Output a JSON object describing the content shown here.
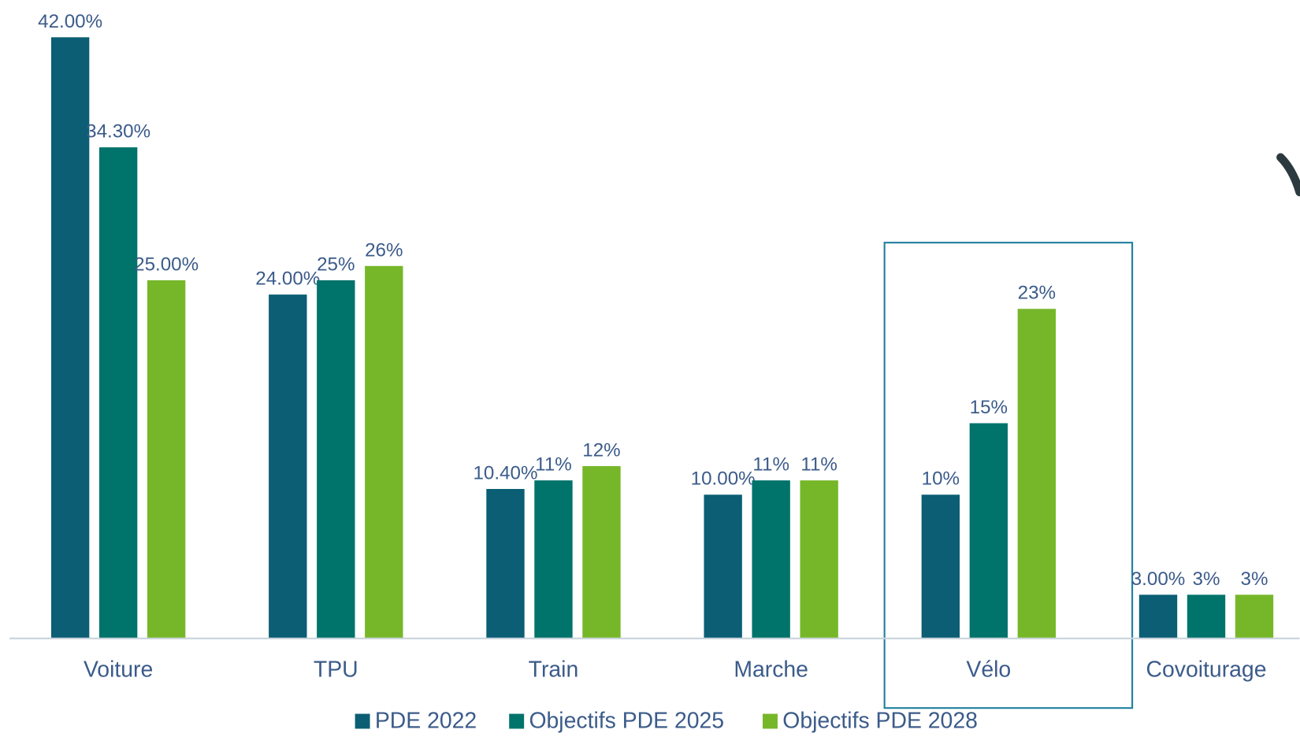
{
  "chart_data": {
    "type": "bar",
    "categories": [
      "Voiture",
      "TPU",
      "Train",
      "Marche",
      "Vélo",
      "Covoiturage"
    ],
    "series": [
      {
        "name": "PDE 2022",
        "color": "#0b5e73",
        "values": [
          42,
          24,
          10.4,
          10,
          10,
          3
        ],
        "value_labels": [
          "42.00%",
          "24.00%",
          "10.40%",
          "10.00%",
          "10%",
          "3.00%"
        ]
      },
      {
        "name": "Objectifs PDE 2025",
        "color": "#00736a",
        "values": [
          34.3,
          25,
          11,
          11,
          15,
          3
        ],
        "value_labels": [
          "34.30%",
          "25%",
          "11%",
          "11%",
          "15%",
          "3%"
        ]
      },
      {
        "name": "Objectifs PDE 2028",
        "color": "#76b72a",
        "values": [
          25,
          26,
          12,
          11,
          23,
          3
        ],
        "value_labels": [
          "25.00%",
          "26%",
          "12%",
          "11%",
          "23%",
          "3%"
        ]
      }
    ],
    "ylim": [
      0,
      42
    ]
  }
}
